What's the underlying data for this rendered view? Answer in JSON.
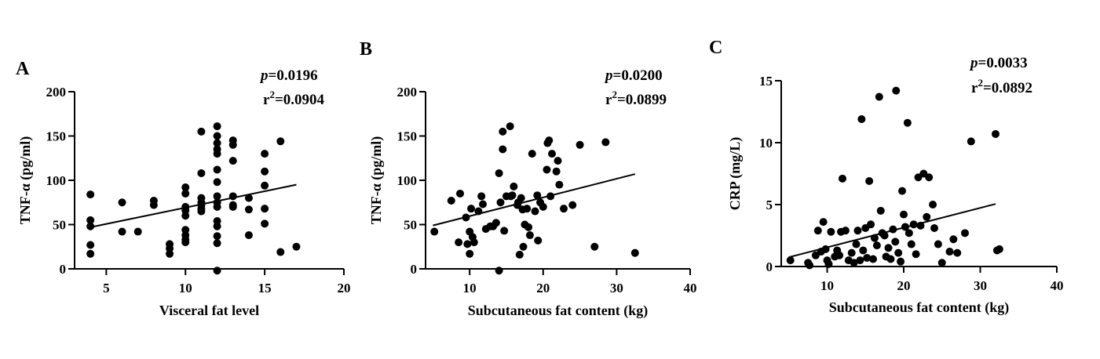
{
  "chart_data": [
    {
      "type": "scatter",
      "panel": "A",
      "xlabel": "Visceral fat level",
      "ylabel": "TNF-α (pg/ml)",
      "xlim": [
        3,
        20
      ],
      "ylim": [
        0,
        200
      ],
      "xticks": [
        5,
        10,
        15,
        20
      ],
      "yticks": [
        0,
        50,
        100,
        150,
        200
      ],
      "stats": {
        "p_prefix": "p",
        "p_value": "=0.0196",
        "r_prefix": "r",
        "r_sup": "2",
        "r_value": "=0.0904"
      },
      "fit": {
        "x": [
          4,
          17
        ],
        "y": [
          47,
          95
        ]
      },
      "points": [
        [
          4,
          84
        ],
        [
          4,
          55
        ],
        [
          4,
          48
        ],
        [
          4,
          27
        ],
        [
          4,
          17
        ],
        [
          6,
          75
        ],
        [
          6,
          42
        ],
        [
          7,
          42
        ],
        [
          8,
          77
        ],
        [
          8,
          72
        ],
        [
          9,
          28
        ],
        [
          9,
          23
        ],
        [
          9,
          17
        ],
        [
          10,
          92
        ],
        [
          10,
          85
        ],
        [
          10,
          70
        ],
        [
          10,
          66
        ],
        [
          10,
          60
        ],
        [
          10,
          44
        ],
        [
          10,
          38
        ],
        [
          10,
          33
        ],
        [
          10,
          30
        ],
        [
          11,
          155
        ],
        [
          11,
          108
        ],
        [
          11,
          80
        ],
        [
          11,
          75
        ],
        [
          11,
          72
        ],
        [
          11,
          68
        ],
        [
          11,
          65
        ],
        [
          12,
          161
        ],
        [
          12,
          150
        ],
        [
          12,
          142
        ],
        [
          12,
          135
        ],
        [
          12,
          130
        ],
        [
          12,
          112
        ],
        [
          12,
          98
        ],
        [
          12,
          82
        ],
        [
          12,
          75
        ],
        [
          12,
          70
        ],
        [
          12,
          54
        ],
        [
          12,
          48
        ],
        [
          12,
          37
        ],
        [
          12,
          29
        ],
        [
          12,
          -2
        ],
        [
          13,
          145
        ],
        [
          13,
          140
        ],
        [
          13,
          122
        ],
        [
          13,
          82
        ],
        [
          13,
          72
        ],
        [
          13,
          70
        ],
        [
          14,
          80
        ],
        [
          14,
          67
        ],
        [
          14,
          38
        ],
        [
          15,
          130
        ],
        [
          15,
          110
        ],
        [
          15,
          94
        ],
        [
          15,
          68
        ],
        [
          15,
          51
        ],
        [
          16,
          144
        ],
        [
          16,
          19
        ],
        [
          17,
          25
        ]
      ]
    },
    {
      "type": "scatter",
      "panel": "B",
      "xlabel": "Subcutaneous fat content (kg)",
      "ylabel": "TNF-α (pg/ml)",
      "xlim": [
        4,
        40
      ],
      "ylim": [
        0,
        200
      ],
      "xticks": [
        10,
        20,
        30,
        40
      ],
      "yticks": [
        0,
        50,
        100,
        150,
        200
      ],
      "stats": {
        "p_prefix": "p",
        "p_value": "=0.0200",
        "r_prefix": "r",
        "r_sup": "2",
        "r_value": "=0.0899"
      },
      "fit": {
        "x": [
          5,
          32.5
        ],
        "y": [
          49,
          107
        ]
      },
      "points": [
        [
          5.2,
          42
        ],
        [
          7.5,
          77
        ],
        [
          8.5,
          30
        ],
        [
          8.7,
          85
        ],
        [
          9.5,
          58
        ],
        [
          9.7,
          28
        ],
        [
          10,
          42
        ],
        [
          10,
          17
        ],
        [
          10.2,
          68
        ],
        [
          10.4,
          36
        ],
        [
          10.6,
          30
        ],
        [
          11.2,
          65
        ],
        [
          11.6,
          82
        ],
        [
          11.8,
          73
        ],
        [
          12.2,
          45
        ],
        [
          12.8,
          48
        ],
        [
          13.2,
          48
        ],
        [
          13.6,
          52
        ],
        [
          14,
          108
        ],
        [
          14,
          -2
        ],
        [
          14.2,
          75
        ],
        [
          14.5,
          155
        ],
        [
          14.5,
          135
        ],
        [
          14.7,
          43
        ],
        [
          15,
          82
        ],
        [
          15.5,
          161
        ],
        [
          15.6,
          82
        ],
        [
          15.8,
          83
        ],
        [
          16,
          93
        ],
        [
          16.5,
          72
        ],
        [
          16.6,
          75
        ],
        [
          16.8,
          16
        ],
        [
          17,
          80
        ],
        [
          17.2,
          67
        ],
        [
          17.3,
          25
        ],
        [
          17.5,
          50
        ],
        [
          17.8,
          68
        ],
        [
          18,
          47
        ],
        [
          18.2,
          38
        ],
        [
          18.5,
          130
        ],
        [
          18.9,
          65
        ],
        [
          19.2,
          83
        ],
        [
          19.3,
          32
        ],
        [
          19.6,
          75
        ],
        [
          20,
          70
        ],
        [
          20.5,
          112
        ],
        [
          20.6,
          142
        ],
        [
          20.8,
          145
        ],
        [
          21,
          82
        ],
        [
          21.2,
          130
        ],
        [
          21.8,
          110
        ],
        [
          22,
          122
        ],
        [
          22.2,
          95
        ],
        [
          22.8,
          68
        ],
        [
          24,
          72
        ],
        [
          25,
          140
        ],
        [
          27,
          25
        ],
        [
          28.5,
          143
        ],
        [
          32.5,
          18
        ]
      ]
    },
    {
      "type": "scatter",
      "panel": "C",
      "xlabel": "Subcutaneous fat content (kg)",
      "ylabel": "CRP (mg/L)",
      "xlim": [
        4,
        40
      ],
      "ylim": [
        0,
        15
      ],
      "xticks": [
        10,
        20,
        30,
        40
      ],
      "yticks": [
        0,
        5,
        10,
        15
      ],
      "stats": {
        "p_prefix": "p",
        "p_value": "=0.0033",
        "r_prefix": "r",
        "r_sup": "2",
        "r_value": "=0.0892"
      },
      "fit": {
        "x": [
          5,
          32
        ],
        "y": [
          0.75,
          5.05
        ]
      },
      "points": [
        [
          5.2,
          0.5
        ],
        [
          7.5,
          0.3
        ],
        [
          7.7,
          0.1
        ],
        [
          8.5,
          0.9
        ],
        [
          8.8,
          2.9
        ],
        [
          9.2,
          1.2
        ],
        [
          9.5,
          3.6
        ],
        [
          9.8,
          1.4
        ],
        [
          10,
          0.5
        ],
        [
          10.2,
          0.2
        ],
        [
          10.5,
          2.8
        ],
        [
          11,
          0.8
        ],
        [
          11.3,
          1.3
        ],
        [
          11.6,
          0.9
        ],
        [
          11.8,
          2.8
        ],
        [
          12,
          7.1
        ],
        [
          12.4,
          2.9
        ],
        [
          12.8,
          0.5
        ],
        [
          13.2,
          1.1
        ],
        [
          13.5,
          0.3
        ],
        [
          13.8,
          1.8
        ],
        [
          14,
          2.9
        ],
        [
          14.3,
          0.5
        ],
        [
          14.5,
          11.9
        ],
        [
          14.7,
          1.3
        ],
        [
          15,
          3.1
        ],
        [
          15.2,
          0.7
        ],
        [
          15.5,
          6.9
        ],
        [
          15.7,
          3.4
        ],
        [
          16,
          0.6
        ],
        [
          16.2,
          2.3
        ],
        [
          16.5,
          1.7
        ],
        [
          16.8,
          13.7
        ],
        [
          17,
          4.5
        ],
        [
          17.2,
          2.7
        ],
        [
          17.5,
          2.5
        ],
        [
          17.7,
          0.8
        ],
        [
          18,
          1.5
        ],
        [
          18.3,
          0.6
        ],
        [
          18.6,
          3.0
        ],
        [
          18.9,
          2.0
        ],
        [
          19,
          14.2
        ],
        [
          19.3,
          1.1
        ],
        [
          19.6,
          0.4
        ],
        [
          19.8,
          6.1
        ],
        [
          20,
          4.2
        ],
        [
          20.2,
          3.2
        ],
        [
          20.5,
          11.6
        ],
        [
          20.7,
          2.7
        ],
        [
          21,
          1.8
        ],
        [
          21.3,
          3.4
        ],
        [
          21.6,
          1.0
        ],
        [
          21.9,
          7.2
        ],
        [
          22.2,
          3.3
        ],
        [
          22.6,
          7.5
        ],
        [
          23,
          4.0
        ],
        [
          23.3,
          7.2
        ],
        [
          23.8,
          5.0
        ],
        [
          24,
          3.1
        ],
        [
          24.5,
          1.8
        ],
        [
          25,
          0.3
        ],
        [
          26,
          1.2
        ],
        [
          26.5,
          2.2
        ],
        [
          27,
          1.1
        ],
        [
          28,
          2.7
        ],
        [
          28.8,
          10.1
        ],
        [
          32,
          10.7
        ],
        [
          32.2,
          1.3
        ],
        [
          32.5,
          1.4
        ]
      ]
    }
  ]
}
